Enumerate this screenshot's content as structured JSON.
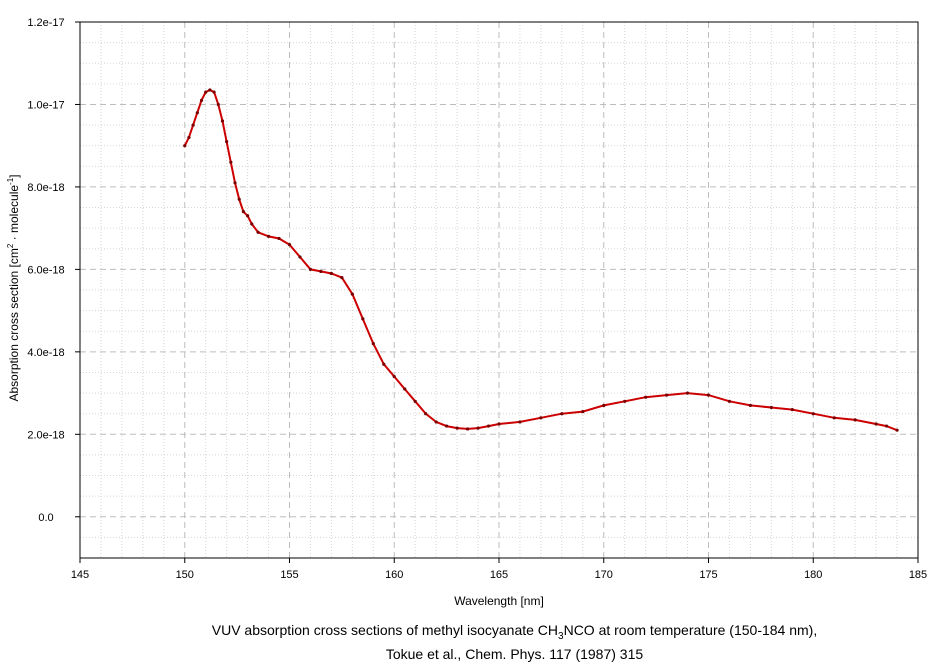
{
  "chart_data": {
    "type": "line",
    "xlabel": "Wavelength [nm]",
    "ylabel": {
      "prefix": "Absorption cross section [cm",
      "sup1": "2",
      "middle": " · molecule",
      "sup2": "-1",
      "suffix": "]"
    },
    "xlim": [
      145,
      185
    ],
    "ylim": [
      -1e-18,
      1.2e-17
    ],
    "x_ticks": [
      145,
      150,
      155,
      160,
      165,
      170,
      175,
      180,
      185
    ],
    "y_ticks": [
      0,
      2e-18,
      4e-18,
      6e-18,
      8e-18,
      1e-17,
      1.2e-17
    ],
    "x_tick_labels": [
      "145",
      "150",
      "155",
      "160",
      "165",
      "170",
      "175",
      "180",
      "185"
    ],
    "y_tick_labels": [
      "0.0",
      "2.0e-18",
      "4.0e-18",
      "6.0e-18",
      "8.0e-18",
      "1.0e-17",
      "1.2e-17"
    ],
    "grid": true,
    "line_color": "#cc0000",
    "series": [
      {
        "x": [
          150.0,
          150.2,
          150.4,
          150.6,
          150.8,
          151.0,
          151.2,
          151.4,
          151.6,
          151.8,
          152.0,
          152.2,
          152.4,
          152.6,
          152.8,
          153.0,
          153.2,
          153.5,
          154.0,
          154.5,
          155.0,
          155.5,
          156.0,
          156.5,
          157.0,
          157.5,
          158.0,
          158.5,
          159.0,
          159.5,
          160.0,
          160.5,
          161.0,
          161.5,
          162.0,
          162.5,
          163.0,
          163.5,
          164.0,
          164.5,
          165.0,
          166.0,
          167.0,
          168.0,
          169.0,
          170.0,
          171.0,
          172.0,
          173.0,
          174.0,
          175.0,
          176.0,
          177.0,
          178.0,
          179.0,
          180.0,
          181.0,
          182.0,
          183.0,
          183.5,
          184.0
        ],
        "values": [
          9e-18,
          9.2e-18,
          9.5e-18,
          9.8e-18,
          1.01e-17,
          1.03e-17,
          1.035e-17,
          1.03e-17,
          1e-17,
          9.6e-18,
          9.1e-18,
          8.6e-18,
          8.1e-18,
          7.7e-18,
          7.4e-18,
          7.3e-18,
          7.1e-18,
          6.9e-18,
          6.8e-18,
          6.75e-18,
          6.6e-18,
          6.3e-18,
          6e-18,
          5.95e-18,
          5.9e-18,
          5.8e-18,
          5.4e-18,
          4.8e-18,
          4.2e-18,
          3.7e-18,
          3.4e-18,
          3.1e-18,
          2.8e-18,
          2.5e-18,
          2.3e-18,
          2.2e-18,
          2.15e-18,
          2.13e-18,
          2.15e-18,
          2.2e-18,
          2.25e-18,
          2.3e-18,
          2.4e-18,
          2.5e-18,
          2.55e-18,
          2.7e-18,
          2.8e-18,
          2.9e-18,
          2.95e-18,
          3e-18,
          2.95e-18,
          2.8e-18,
          2.7e-18,
          2.65e-18,
          2.6e-18,
          2.5e-18,
          2.4e-18,
          2.35e-18,
          2.25e-18,
          2.2e-18,
          2.1e-18
        ]
      }
    ]
  },
  "caption": {
    "line1_prefix": "VUV absorption cross sections of methyl isocyanate CH",
    "line1_sub": "3",
    "line1_suffix": "NCO at room temperature (150-184 nm),",
    "line2": "Tokue et al., Chem. Phys. 117 (1987) 315"
  }
}
